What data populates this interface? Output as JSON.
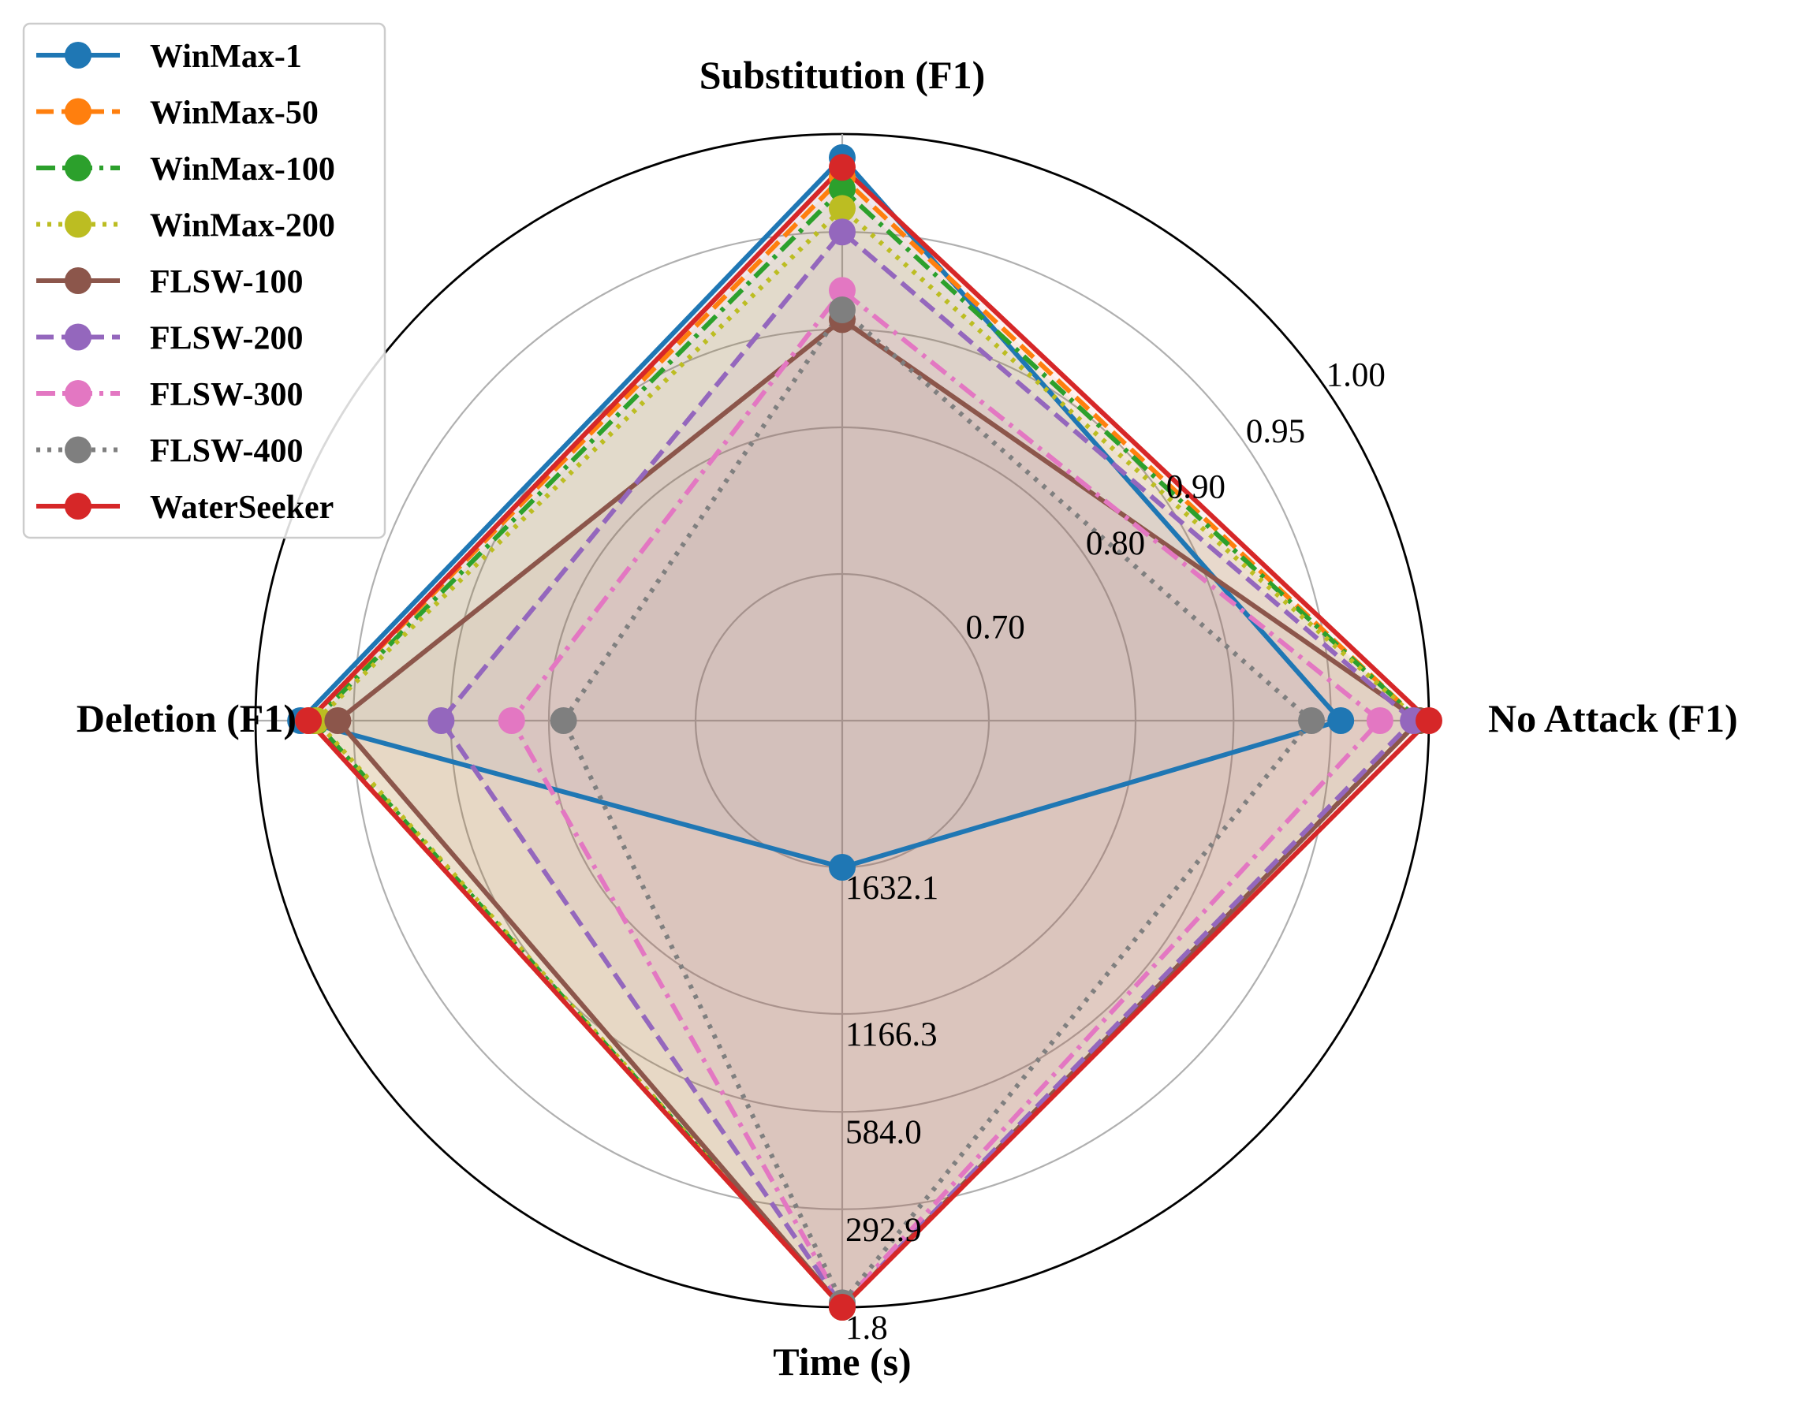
{
  "chart_data": {
    "type": "radar",
    "axes": [
      "No Attack (F1)",
      "Substitution (F1)",
      "Deletion (F1)",
      "Time (s)"
    ],
    "f1_tick_labels": [
      "0.70",
      "0.80",
      "0.90",
      "0.95",
      "1.00"
    ],
    "time_tick_labels": [
      "1632.1",
      "1166.3",
      "584.0",
      "292.9",
      "1.8"
    ],
    "grid": true,
    "legend_position": "top-left",
    "series": [
      {
        "name": "WinMax-1",
        "color": "#1f77b4",
        "linestyle": "solid",
        "values": {
          "no_attack": 0.955,
          "substitution": 0.988,
          "deletion": 0.977,
          "time_s": 1632.1
        }
      },
      {
        "name": "WinMax-50",
        "color": "#ff7f0e",
        "linestyle": "dashed",
        "values": {
          "no_attack": 0.995,
          "substitution": 0.978,
          "deletion": 0.973,
          "time_s": 2.0
        }
      },
      {
        "name": "WinMax-100",
        "color": "#2ca02c",
        "linestyle": "dashdot",
        "values": {
          "no_attack": 0.995,
          "substitution": 0.972,
          "deletion": 0.97,
          "time_s": 2.0
        }
      },
      {
        "name": "WinMax-200",
        "color": "#bcbd22",
        "linestyle": "dotted",
        "values": {
          "no_attack": 0.995,
          "substitution": 0.962,
          "deletion": 0.969,
          "time_s": 2.0
        }
      },
      {
        "name": "FLSW-100",
        "color": "#8c564b",
        "linestyle": "solid",
        "values": {
          "no_attack": 0.995,
          "substitution": 0.905,
          "deletion": 0.958,
          "time_s": 1.9
        }
      },
      {
        "name": "FLSW-200",
        "color": "#9467bd",
        "linestyle": "dashed",
        "values": {
          "no_attack": 0.992,
          "substitution": 0.95,
          "deletion": 0.905,
          "time_s": 5.0
        }
      },
      {
        "name": "FLSW-300",
        "color": "#e377c2",
        "linestyle": "dashdot",
        "values": {
          "no_attack": 0.975,
          "substitution": 0.92,
          "deletion": 0.838,
          "time_s": 10.0
        }
      },
      {
        "name": "FLSW-400",
        "color": "#7f7f7f",
        "linestyle": "dotted",
        "values": {
          "no_attack": 0.94,
          "substitution": 0.91,
          "deletion": 0.79,
          "time_s": 15.0
        }
      },
      {
        "name": "WaterSeeker",
        "color": "#d62728",
        "linestyle": "solid",
        "values": {
          "no_attack": 1.0,
          "substitution": 0.983,
          "deletion": 0.973,
          "time_s": 1.8
        }
      }
    ]
  }
}
